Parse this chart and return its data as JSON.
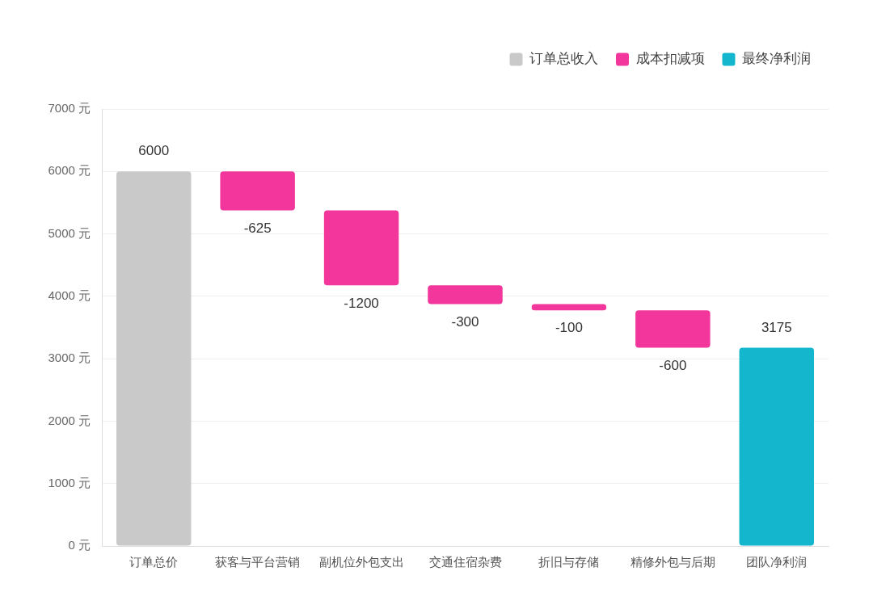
{
  "chart_data": {
    "type": "bar",
    "categories": [
      "订单总价",
      "获客与平台营销",
      "副机位外包支出",
      "交通住宿杂费",
      "折旧与存储",
      "精修外包与后期",
      "团队净利润"
    ],
    "series": [
      {
        "name": "订单总收入",
        "color": "#c9c9c9",
        "values": [
          6000,
          null,
          null,
          null,
          null,
          null,
          null
        ]
      },
      {
        "name": "成本扣减项",
        "color": "#f2369b",
        "values": [
          null,
          -625,
          -1200,
          -300,
          -100,
          -600,
          null
        ],
        "base": [
          null,
          6000,
          5375,
          4175,
          3875,
          3775,
          null
        ]
      },
      {
        "name": "最终净利润",
        "color": "#13b6cc",
        "values": [
          null,
          null,
          null,
          null,
          null,
          null,
          3175
        ]
      }
    ],
    "ylim": [
      0,
      7000
    ],
    "yticks": [
      {
        "value": 0,
        "label": "0 元"
      },
      {
        "value": 1000,
        "label": "1000 元"
      },
      {
        "value": 2000,
        "label": "2000 元"
      },
      {
        "value": 3000,
        "label": "3000 元"
      },
      {
        "value": 4000,
        "label": "4000 元"
      },
      {
        "value": 5000,
        "label": "5000 元"
      },
      {
        "value": 6000,
        "label": "6000 元"
      },
      {
        "value": 7000,
        "label": "7000 元"
      }
    ],
    "grid": "y",
    "legend": "top right",
    "data_labels": true
  }
}
